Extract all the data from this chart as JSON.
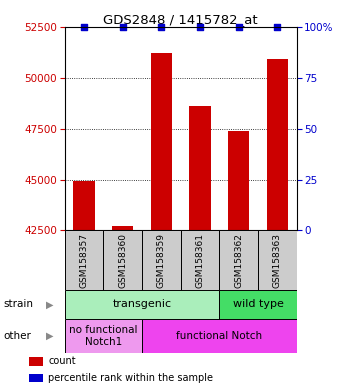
{
  "title": "GDS2848 / 1415782_at",
  "samples": [
    "GSM158357",
    "GSM158360",
    "GSM158359",
    "GSM158361",
    "GSM158362",
    "GSM158363"
  ],
  "counts": [
    44950,
    42700,
    51200,
    48600,
    47400,
    50900
  ],
  "ylim_left": [
    42500,
    52500
  ],
  "ylim_right": [
    0,
    100
  ],
  "yticks_left": [
    42500,
    45000,
    47500,
    50000,
    52500
  ],
  "yticks_right": [
    0,
    25,
    50,
    75,
    100
  ],
  "bar_color": "#cc0000",
  "percentile_color": "#0000cc",
  "strain_groups": [
    {
      "label": "transgenic",
      "span": [
        0,
        4
      ],
      "color": "#aaeebb"
    },
    {
      "label": "wild type",
      "span": [
        4,
        6
      ],
      "color": "#44dd66"
    }
  ],
  "other_groups": [
    {
      "label": "no functional\nNotch1",
      "span": [
        0,
        2
      ],
      "color": "#ee99ee"
    },
    {
      "label": "functional Notch",
      "span": [
        2,
        6
      ],
      "color": "#ee44ee"
    }
  ],
  "legend_items": [
    {
      "label": "count",
      "color": "#cc0000"
    },
    {
      "label": "percentile rank within the sample",
      "color": "#0000cc"
    }
  ],
  "tick_color_left": "#cc0000",
  "tick_color_right": "#0000cc",
  "bg_color": "#ffffff",
  "bar_width": 0.55,
  "annotation_strain": "strain",
  "annotation_other": "other",
  "sample_box_color": "#cccccc",
  "arrow_char": "▶"
}
